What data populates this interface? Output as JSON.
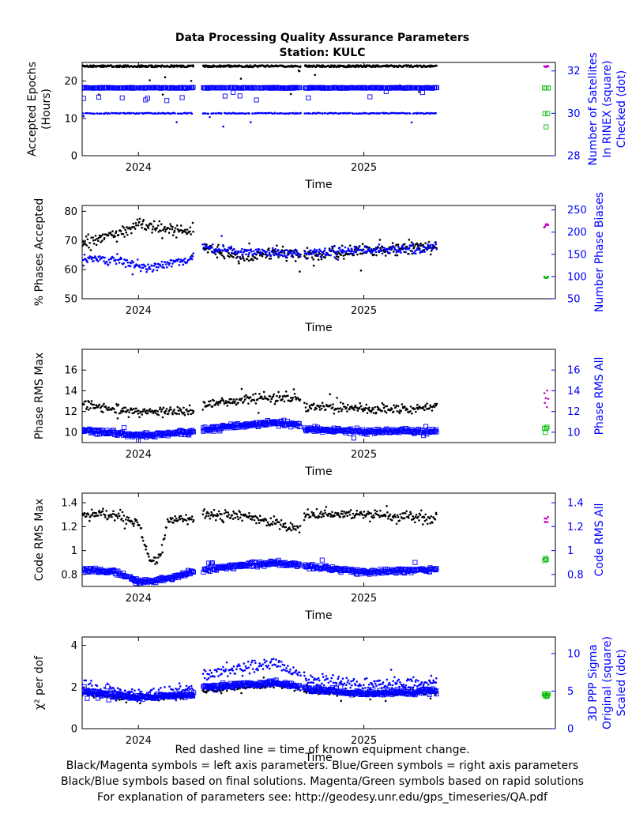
{
  "title": "Data Processing Quality Assurance Parameters",
  "subtitle": "Station: KULC",
  "colors": {
    "left": "#000000",
    "right": "#0000ff",
    "rapid_left": "#cc00cc",
    "rapid_right": "#00bb00"
  },
  "footer": [
    "Red dashed line = time of known equipment change.",
    "Black/Magenta symbols = left axis parameters. Blue/Green symbols = right axis parameters",
    "Black/Blue symbols based on final solutions.  Magenta/Green symbols based on rapid solutions",
    "For explanation of parameters see: http://geodesy.unr.edu/gps_timeseries/QA.pdf"
  ],
  "chart_data": [
    {
      "id": "p1",
      "type": "scatter",
      "xlabel": "Time",
      "xlim": [
        2023.75,
        2025.85
      ],
      "xticks": [
        2024,
        2025
      ],
      "xticklabels": [
        "2024",
        "2025"
      ],
      "ylabel": [
        "Accepted Epochs",
        "(Hours)"
      ],
      "ylim": [
        0,
        25
      ],
      "yticks": [
        0,
        10,
        20
      ],
      "yticklabels": [
        "0",
        "10",
        "20"
      ],
      "y2label": [
        "Number of Satellites",
        "In RINEX (square)",
        "Checked (dot)"
      ],
      "y2lim": [
        28,
        32.4
      ],
      "y2ticks": [
        28,
        30,
        32
      ],
      "y2ticklabels": [
        "28",
        "30",
        "32"
      ],
      "gaps": [
        [
          2024.245,
          2024.285
        ],
        [
          2024.72,
          2024.735
        ]
      ],
      "series": [
        {
          "axis": "left",
          "marker": "dot",
          "color": "left",
          "gen": "band",
          "range": [
            2023.75,
            2025.325
          ],
          "count": 600,
          "base": 24,
          "spread": 0.25,
          "seed": 11
        },
        {
          "axis": "right",
          "marker": "square",
          "color": "right",
          "gen": "band",
          "range": [
            2023.75,
            2025.325
          ],
          "count": 420,
          "base": 31.2,
          "spread": 0.02,
          "seed": 12
        },
        {
          "axis": "right",
          "marker": "dot",
          "color": "right",
          "gen": "band",
          "range": [
            2023.75,
            2025.325
          ],
          "count": 260,
          "base": 30,
          "spread": 0.02,
          "seed": 13
        }
      ],
      "rapid": [
        {
          "axis": "left",
          "marker": "dot",
          "color": "rapid_left",
          "gen": "band",
          "range": [
            2025.8,
            2025.82
          ],
          "count": 8,
          "base": 24,
          "spread": 0.2,
          "seed": 14
        },
        {
          "axis": "right",
          "marker": "square",
          "color": "rapid_right",
          "gen": "band",
          "range": [
            2025.8,
            2025.82
          ],
          "count": 3,
          "base": 31.2,
          "spread": 0.02,
          "seed": 15
        },
        {
          "axis": "right",
          "marker": "square",
          "color": "rapid_right",
          "gen": "band",
          "range": [
            2025.8,
            2025.82
          ],
          "count": 3,
          "base": 30,
          "spread": 0.02,
          "seed": 16
        }
      ]
    },
    {
      "id": "p2",
      "type": "scatter",
      "xlabel": "Time",
      "xlim": [
        2023.75,
        2025.85
      ],
      "xticks": [
        2024,
        2025
      ],
      "xticklabels": [
        "2024",
        "2025"
      ],
      "ylabel": [
        "% Phases Accepted"
      ],
      "ylim": [
        50,
        82
      ],
      "yticks": [
        50,
        60,
        70,
        80
      ],
      "yticklabels": [
        "50",
        "60",
        "70",
        "80"
      ],
      "y2label": [
        "Number Phase Biases"
      ],
      "y2lim": [
        50,
        260
      ],
      "y2ticks": [
        50,
        100,
        150,
        200,
        250
      ],
      "y2ticklabels": [
        "50",
        "100",
        "150",
        "200",
        "250"
      ],
      "gaps": [
        [
          2024.245,
          2024.285
        ],
        [
          2024.72,
          2024.735
        ]
      ],
      "series": [
        {
          "axis": "left",
          "marker": "dot",
          "color": "left",
          "gen": "trend",
          "range": [
            2023.75,
            2025.325
          ],
          "count": 480,
          "knots": [
            [
              2023.75,
              69
            ],
            [
              2023.9,
              72
            ],
            [
              2024.0,
              76
            ],
            [
              2024.1,
              74
            ],
            [
              2024.24,
              73
            ],
            [
              2024.29,
              67
            ],
            [
              2024.45,
              64
            ],
            [
              2024.6,
              66
            ],
            [
              2024.74,
              65
            ],
            [
              2024.9,
              66
            ],
            [
              2025.1,
              67
            ],
            [
              2025.325,
              68
            ]
          ],
          "spread": 3.5,
          "seed": 21
        },
        {
          "axis": "right",
          "marker": "dot",
          "color": "right",
          "gen": "trend",
          "range": [
            2023.75,
            2025.325
          ],
          "count": 480,
          "knots": [
            [
              2023.75,
              145
            ],
            [
              2023.9,
              135
            ],
            [
              2024.05,
              120
            ],
            [
              2024.24,
              140
            ],
            [
              2024.29,
              165
            ],
            [
              2024.5,
              155
            ],
            [
              2024.74,
              152
            ],
            [
              2025.0,
              160
            ],
            [
              2025.325,
              165
            ]
          ],
          "spread": 15,
          "seed": 22
        }
      ],
      "rapid": [
        {
          "axis": "left",
          "marker": "dot",
          "color": "rapid_left",
          "gen": "band",
          "range": [
            2025.8,
            2025.82
          ],
          "count": 6,
          "base": 75,
          "spread": 0.6,
          "seed": 23
        },
        {
          "axis": "right",
          "marker": "dot",
          "color": "rapid_right",
          "gen": "band",
          "range": [
            2025.8,
            2025.82
          ],
          "count": 6,
          "base": 97,
          "spread": 3,
          "seed": 24
        }
      ]
    },
    {
      "id": "p3",
      "type": "scatter",
      "xlabel": "Time",
      "xlim": [
        2023.75,
        2025.85
      ],
      "xticks": [
        2024,
        2025
      ],
      "xticklabels": [
        "2024",
        "2025"
      ],
      "ylabel": [
        "Phase RMS Max"
      ],
      "ylim": [
        9,
        18
      ],
      "yticks": [
        10,
        12,
        14,
        16
      ],
      "yticklabels": [
        "10",
        "12",
        "14",
        "16"
      ],
      "y2label": [
        "Phase RMS All"
      ],
      "y2lim": [
        9,
        18
      ],
      "y2ticks": [
        10,
        12,
        14,
        16
      ],
      "y2ticklabels": [
        "10",
        "12",
        "14",
        "16"
      ],
      "gaps": [
        [
          2024.245,
          2024.285
        ],
        [
          2024.72,
          2024.735
        ]
      ],
      "series": [
        {
          "axis": "left",
          "marker": "dot",
          "color": "left",
          "gen": "trend",
          "range": [
            2023.75,
            2025.325
          ],
          "count": 460,
          "knots": [
            [
              2023.75,
              12.6
            ],
            [
              2024.0,
              12.0
            ],
            [
              2024.24,
              12.0
            ],
            [
              2024.29,
              12.6
            ],
            [
              2024.55,
              13.4
            ],
            [
              2024.72,
              13.2
            ],
            [
              2024.74,
              12.5
            ],
            [
              2025.0,
              12.2
            ],
            [
              2025.325,
              12.4
            ]
          ],
          "spread": 0.7,
          "seed": 31
        },
        {
          "axis": "right",
          "marker": "square",
          "color": "right",
          "gen": "trend",
          "range": [
            2023.75,
            2025.325
          ],
          "count": 460,
          "knots": [
            [
              2023.75,
              10.2
            ],
            [
              2024.0,
              9.7
            ],
            [
              2024.24,
              10.0
            ],
            [
              2024.29,
              10.3
            ],
            [
              2024.6,
              10.9
            ],
            [
              2024.72,
              10.7
            ],
            [
              2024.74,
              10.3
            ],
            [
              2025.0,
              10.1
            ],
            [
              2025.325,
              10.1
            ]
          ],
          "spread": 0.35,
          "seed": 32
        }
      ],
      "rapid": [
        {
          "axis": "left",
          "marker": "dot",
          "color": "rapid_left",
          "gen": "band",
          "range": [
            2025.8,
            2025.82
          ],
          "count": 6,
          "base": 13,
          "spread": 1.6,
          "seed": 33
        },
        {
          "axis": "right",
          "marker": "square",
          "color": "rapid_right",
          "gen": "band",
          "range": [
            2025.8,
            2025.82
          ],
          "count": 5,
          "base": 10.2,
          "spread": 0.3,
          "seed": 34
        }
      ]
    },
    {
      "id": "p4",
      "type": "scatter",
      "xlabel": "Time",
      "xlim": [
        2023.75,
        2025.85
      ],
      "xticks": [
        2024,
        2025
      ],
      "xticklabels": [
        "2024",
        "2025"
      ],
      "ylabel": [
        "Code RMS Max"
      ],
      "ylim": [
        0.7,
        1.48
      ],
      "yticks": [
        0.8,
        1.0,
        1.2,
        1.4
      ],
      "yticklabels": [
        "0.8",
        "1",
        "1.2",
        "1.4"
      ],
      "y2label": [
        "Code RMS All"
      ],
      "y2lim": [
        0.7,
        1.48
      ],
      "y2ticks": [
        0.8,
        1.0,
        1.2,
        1.4
      ],
      "y2ticklabels": [
        "0.8",
        "1",
        "1.2",
        "1.4"
      ],
      "gaps": [
        [
          2024.245,
          2024.285
        ],
        [
          2024.72,
          2024.735
        ]
      ],
      "series": [
        {
          "axis": "left",
          "marker": "dot",
          "color": "left",
          "gen": "trend",
          "range": [
            2023.75,
            2025.325
          ],
          "count": 460,
          "knots": [
            [
              2023.75,
              1.3
            ],
            [
              2023.9,
              1.3
            ],
            [
              2024.0,
              1.22
            ],
            [
              2024.05,
              0.9
            ],
            [
              2024.1,
              0.95
            ],
            [
              2024.13,
              1.27
            ],
            [
              2024.24,
              1.26
            ],
            [
              2024.29,
              1.3
            ],
            [
              2024.5,
              1.28
            ],
            [
              2024.72,
              1.18
            ],
            [
              2024.74,
              1.3
            ],
            [
              2025.0,
              1.3
            ],
            [
              2025.325,
              1.27
            ]
          ],
          "spread": 0.07,
          "seed": 41
        },
        {
          "axis": "right",
          "marker": "square",
          "color": "right",
          "gen": "trend",
          "range": [
            2023.75,
            2025.325
          ],
          "count": 460,
          "knots": [
            [
              2023.75,
              0.84
            ],
            [
              2023.9,
              0.82
            ],
            [
              2024.0,
              0.74
            ],
            [
              2024.1,
              0.75
            ],
            [
              2024.24,
              0.82
            ],
            [
              2024.29,
              0.84
            ],
            [
              2024.6,
              0.9
            ],
            [
              2024.72,
              0.88
            ],
            [
              2024.74,
              0.87
            ],
            [
              2025.0,
              0.82
            ],
            [
              2025.325,
              0.84
            ]
          ],
          "spread": 0.03,
          "seed": 42
        }
      ],
      "rapid": [
        {
          "axis": "left",
          "marker": "dot",
          "color": "rapid_left",
          "gen": "band",
          "range": [
            2025.8,
            2025.82
          ],
          "count": 6,
          "base": 1.3,
          "spread": 0.07,
          "seed": 43
        },
        {
          "axis": "right",
          "marker": "square",
          "color": "rapid_right",
          "gen": "band",
          "range": [
            2025.8,
            2025.82
          ],
          "count": 5,
          "base": 0.93,
          "spread": 0.02,
          "seed": 44
        }
      ]
    },
    {
      "id": "p5",
      "type": "scatter",
      "xlabel": "Time",
      "xlim": [
        2023.75,
        2025.85
      ],
      "xticks": [
        2024,
        2025
      ],
      "xticklabels": [
        "2024",
        "2025"
      ],
      "ylabel": [
        "χ² per dof"
      ],
      "ylim": [
        0,
        4.4
      ],
      "yticks": [
        0,
        2,
        4
      ],
      "yticklabels": [
        "0",
        "2",
        "4"
      ],
      "y2label": [
        "3D PPP Sigma",
        "Original (square)",
        "Scaled (dot)"
      ],
      "y2lim": [
        0,
        12.2
      ],
      "y2ticks": [
        0,
        5,
        10
      ],
      "y2ticklabels": [
        "0",
        "5",
        "10"
      ],
      "gaps": [
        [
          2024.245,
          2024.285
        ],
        [
          2024.72,
          2024.735
        ]
      ],
      "series": [
        {
          "axis": "left",
          "marker": "dot",
          "color": "left",
          "gen": "trend",
          "range": [
            2023.75,
            2025.325
          ],
          "count": 460,
          "knots": [
            [
              2023.75,
              1.7
            ],
            [
              2024.0,
              1.45
            ],
            [
              2024.24,
              1.6
            ],
            [
              2024.29,
              1.8
            ],
            [
              2024.6,
              2.1
            ],
            [
              2024.72,
              1.9
            ],
            [
              2024.74,
              1.8
            ],
            [
              2025.0,
              1.65
            ],
            [
              2025.325,
              1.75
            ]
          ],
          "spread": 0.18,
          "seed": 51
        },
        {
          "axis": "right",
          "marker": "square",
          "color": "right",
          "gen": "trend",
          "range": [
            2023.75,
            2025.325
          ],
          "count": 460,
          "knots": [
            [
              2023.75,
              5.0
            ],
            [
              2024.0,
              4.1
            ],
            [
              2024.24,
              4.6
            ],
            [
              2024.29,
              5.6
            ],
            [
              2024.6,
              6.1
            ],
            [
              2024.72,
              5.5
            ],
            [
              2024.74,
              5.3
            ],
            [
              2025.0,
              4.7
            ],
            [
              2025.325,
              5.0
            ]
          ],
          "spread": 0.5,
          "seed": 52
        },
        {
          "axis": "right",
          "marker": "dot",
          "color": "right",
          "gen": "trend",
          "range": [
            2023.75,
            2025.325
          ],
          "count": 420,
          "knots": [
            [
              2023.75,
              5.6
            ],
            [
              2024.0,
              4.4
            ],
            [
              2024.24,
              5.2
            ],
            [
              2024.29,
              7.3
            ],
            [
              2024.6,
              8.6
            ],
            [
              2024.72,
              7.5
            ],
            [
              2024.74,
              6.6
            ],
            [
              2025.0,
              5.8
            ],
            [
              2025.325,
              6.3
            ]
          ],
          "spread": 1.3,
          "seed": 53
        }
      ],
      "rapid": [
        {
          "axis": "right",
          "marker": "square",
          "color": "rapid_right",
          "gen": "band",
          "range": [
            2025.8,
            2025.82
          ],
          "count": 6,
          "base": 4.5,
          "spread": 0.3,
          "seed": 54
        }
      ]
    }
  ]
}
